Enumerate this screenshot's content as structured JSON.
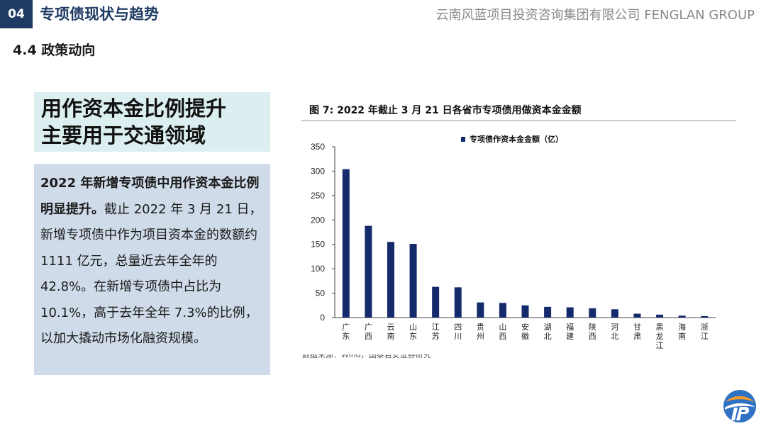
{
  "header": {
    "section_number": "04",
    "section_title": "专项债现状与趋势",
    "company": "云南风蓝项目投资咨询集团有限公司 FENGLAN GROUP"
  },
  "subheading": "4.4 政策动向",
  "headline": {
    "line1": "用作资本金比例提升",
    "line2": "主要用于交通领域"
  },
  "body": {
    "lead_bold": "2022 年新增专项债中用作资本金比例明显提升。",
    "rest": "截止 2022 年 3 月 21 日，新增专项债中作为项目资本金的数额约 1111 亿元，总量近去年全年的 42.8%。在新增专项债中占比为 10.1%，高于去年全年 7.3%的比例，以加大撬动市场化融资规模。"
  },
  "figure": {
    "title": "图 7:  2022 年截止 3 月 21 日各省市专项债用做资本金金额",
    "source_partial": "数据来源：Wind，国泰君安证券研究"
  },
  "chart_data": {
    "type": "bar",
    "title": "图 7:  2022 年截止 3 月 21 日各省市专项债用做资本金金额",
    "legend": "专项债作资本金金额（亿）",
    "legend_position": "top-center",
    "categories": [
      "广东",
      "广西",
      "云南",
      "山东",
      "江苏",
      "四川",
      "贵州",
      "山西",
      "安徽",
      "湖北",
      "福建",
      "陕西",
      "河北",
      "甘肃",
      "黑龙江",
      "海南",
      "浙江"
    ],
    "values": [
      304,
      188,
      155,
      151,
      63,
      62,
      31,
      30,
      25,
      22,
      21,
      19,
      17,
      8,
      6,
      4,
      3
    ],
    "ylim": [
      0,
      350
    ],
    "yticks": [
      0,
      50,
      100,
      150,
      200,
      250,
      300,
      350
    ],
    "xlabel": "",
    "ylabel": "",
    "grid": false,
    "color": "#142a6b"
  }
}
